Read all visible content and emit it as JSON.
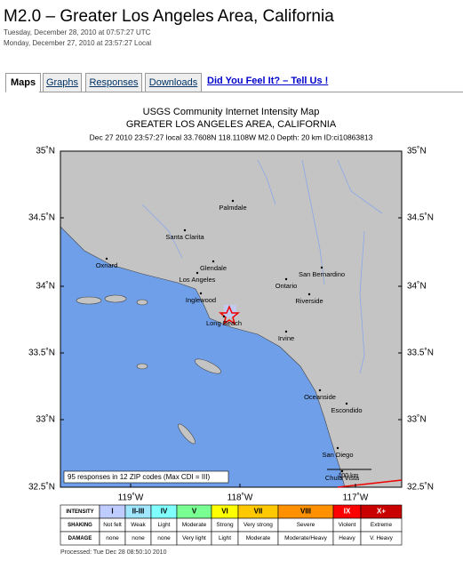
{
  "header": {
    "title": "M2.0 – Greater Los Angeles Area, California",
    "time_utc": "Tuesday, December 28, 2010 at 07:57:27 UTC",
    "time_local": "Monday, December 27, 2010 at 23:57:27 Local"
  },
  "tabs": [
    "Maps",
    "Graphs",
    "Responses",
    "Downloads"
  ],
  "feel_link": "Did You Feel It? – Tell Us !",
  "map": {
    "title": "USGS Community Internet Intensity Map",
    "region": "GREATER LOS ANGELES AREA, CALIFORNIA",
    "info": "Dec 27 2010 23:57:27 local 33.7608N 118.1108W M2.0 Depth: 20 km ID:ci10863813",
    "lat_labels": [
      "35˚N",
      "34.5˚N",
      "34˚N",
      "33.5˚N",
      "33˚N",
      "32.5˚N"
    ],
    "lon_labels": [
      "119˚W",
      "118˚W",
      "117˚W"
    ],
    "cities": [
      "Palmdale",
      "Santa Clarita",
      "Oxnard",
      "Glendale",
      "Los Angeles",
      "Ontario",
      "San Bernardino",
      "Inglewood",
      "Riverside",
      "Long Beach",
      "Irvine",
      "Oceanside",
      "Escondido",
      "San Diego",
      "Chula Vista"
    ],
    "scale_label": "100 km",
    "responses_note": "95 responses in 12 ZIP codes (Max CDI = III)"
  },
  "legend": {
    "row_headers": [
      "INTENSITY",
      "SHAKING",
      "DAMAGE"
    ],
    "intensity": [
      "I",
      "II-III",
      "IV",
      "V",
      "VI",
      "VII",
      "VIII",
      "IX",
      "X+"
    ],
    "shaking": [
      "Not felt",
      "Weak",
      "Light",
      "Moderate",
      "Strong",
      "Very strong",
      "Severe",
      "Violent",
      "Extreme"
    ],
    "damage": [
      "none",
      "none",
      "none",
      "Very light",
      "Light",
      "Moderate",
      "Moderate/Heavy",
      "Heavy",
      "V. Heavy"
    ],
    "colors": [
      "#ffffff",
      "#bfccff",
      "#a0e6ff",
      "#80ffff",
      "#7aff93",
      "#ffff00",
      "#ffc800",
      "#ff9100",
      "#ff0000",
      "#c80000"
    ]
  },
  "processed": "Processed: Tue Dec 28 08:50:10 2010"
}
